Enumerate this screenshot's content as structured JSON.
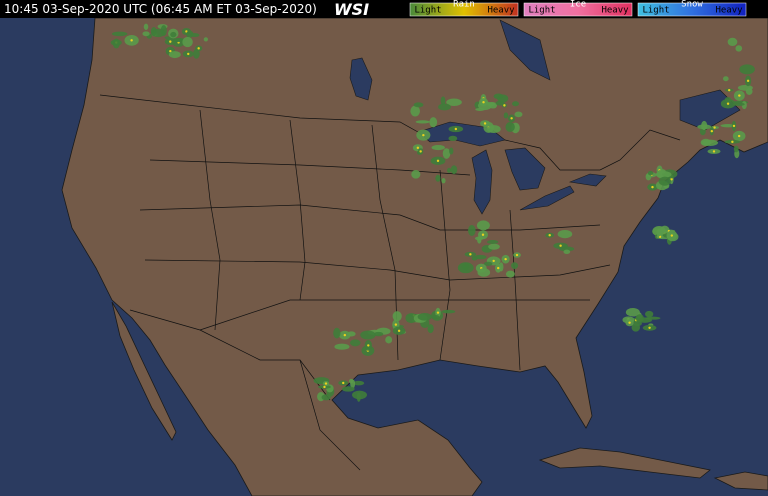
{
  "header": {
    "timestamp": "10:45 03-Sep-2020 UTC  (06:45 AM ET 03-Sep-2020)",
    "brand": "WSI"
  },
  "legend": {
    "groups": [
      {
        "name": "Rain",
        "light": "Light",
        "heavy": "Heavy"
      },
      {
        "name": "Ice",
        "light": "Light",
        "heavy": "Heavy"
      },
      {
        "name": "Snow",
        "light": "Light",
        "heavy": "Heavy"
      }
    ]
  }
}
